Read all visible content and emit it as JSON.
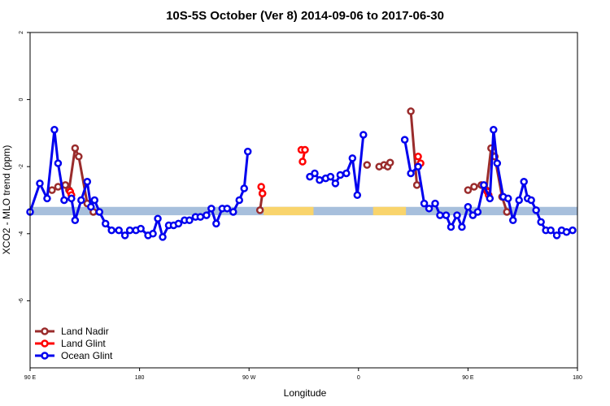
{
  "chart_data": {
    "type": "line",
    "title": "10S-5S October (Ver 8)   2014-09-06 to 2017-06-30",
    "xlabel": "Longitude",
    "ylabel": "XCO2 - MLO trend (ppm)",
    "xlim": [
      90,
      540
    ],
    "ylim": [
      -8,
      2
    ],
    "x_ticks": [
      {
        "value": 90,
        "label": "90 E"
      },
      {
        "value": 180,
        "label": "180"
      },
      {
        "value": 270,
        "label": "90 W"
      },
      {
        "value": 360,
        "label": "0"
      },
      {
        "value": 450,
        "label": "90 E"
      },
      {
        "value": 540,
        "label": "180"
      }
    ],
    "y_ticks": [
      {
        "value": 2,
        "label": "2"
      },
      {
        "value": 0,
        "label": "0"
      },
      {
        "value": -2,
        "label": "-2"
      },
      {
        "value": -4,
        "label": "-4"
      },
      {
        "value": -6,
        "label": "-6"
      }
    ],
    "grid": false,
    "legend_position": "bottom-left",
    "band": {
      "y_min": -3.45,
      "y_max": -3.2,
      "color": "#a7bfdc",
      "highlight_color": "#f9d46c",
      "highlights": [
        [
          282,
          323
        ],
        [
          372,
          399
        ]
      ]
    },
    "series": [
      {
        "name": "Land Nadir",
        "color": "#9a2c2c",
        "segments": [
          [
            [
              108,
              -2.7
            ],
            [
              113,
              -2.6
            ],
            [
              119,
              -2.55
            ],
            [
              122,
              -2.7
            ],
            [
              127,
              -1.45
            ],
            [
              130,
              -1.7
            ],
            [
              137,
              -3.1
            ],
            [
              142,
              -3.35
            ]
          ],
          [
            [
              279,
              -3.3
            ],
            [
              281,
              -2.8
            ]
          ],
          [
            [
              377,
              -2.0
            ]
          ],
          [
            [
              381,
              -1.95
            ],
            [
              384,
              -2.0
            ],
            [
              386,
              -1.88
            ]
          ],
          [
            [
              367,
              -1.95
            ]
          ],
          [
            [
              403,
              -0.35
            ],
            [
              408,
              -2.55
            ]
          ],
          [
            [
              450,
              -2.7
            ],
            [
              455,
              -2.6
            ],
            [
              461,
              -2.55
            ],
            [
              465,
              -2.7
            ],
            [
              469,
              -1.45
            ],
            [
              472,
              -1.7
            ],
            [
              478,
              -2.9
            ],
            [
              482,
              -3.35
            ]
          ]
        ]
      },
      {
        "name": "Land Glint",
        "color": "#ff0000",
        "segments": [
          [
            [
              123,
              -2.75
            ],
            [
              124,
              -2.85
            ]
          ],
          [
            [
              280,
              -2.6
            ],
            [
              281,
              -2.8
            ]
          ],
          [
            [
              313,
              -1.5
            ],
            [
              316,
              -1.5
            ],
            [
              314,
              -1.85
            ]
          ],
          [
            [
              409,
              -1.7
            ],
            [
              411,
              -1.9
            ]
          ],
          [
            [
              466,
              -2.75
            ],
            [
              467,
              -2.85
            ]
          ]
        ]
      },
      {
        "name": "Ocean Glint",
        "color": "#0000ee",
        "segments": [
          [
            [
              90,
              -3.35
            ],
            [
              98,
              -2.5
            ],
            [
              104,
              -2.95
            ],
            [
              110,
              -0.9
            ],
            [
              113,
              -1.9
            ],
            [
              118,
              -3.0
            ],
            [
              124,
              -2.95
            ],
            [
              127,
              -3.6
            ],
            [
              132,
              -3.0
            ],
            [
              137,
              -2.45
            ],
            [
              140,
              -3.2
            ],
            [
              143,
              -3.0
            ],
            [
              147,
              -3.35
            ],
            [
              152,
              -3.7
            ],
            [
              157,
              -3.9
            ],
            [
              163,
              -3.9
            ],
            [
              168,
              -4.05
            ],
            [
              172,
              -3.9
            ],
            [
              177,
              -3.9
            ],
            [
              181,
              -3.85
            ],
            [
              187,
              -4.05
            ],
            [
              191,
              -4.0
            ],
            [
              195,
              -3.55
            ],
            [
              199,
              -4.1
            ],
            [
              204,
              -3.75
            ],
            [
              208,
              -3.75
            ],
            [
              212,
              -3.7
            ],
            [
              217,
              -3.6
            ],
            [
              221,
              -3.6
            ],
            [
              226,
              -3.5
            ],
            [
              230,
              -3.5
            ],
            [
              235,
              -3.45
            ],
            [
              239,
              -3.25
            ],
            [
              243,
              -3.7
            ],
            [
              248,
              -3.25
            ],
            [
              252,
              -3.25
            ],
            [
              257,
              -3.35
            ],
            [
              262,
              -3.0
            ],
            [
              266,
              -2.65
            ],
            [
              269,
              -1.55
            ]
          ],
          [
            [
              320,
              -2.3
            ],
            [
              324,
              -2.2
            ],
            [
              328,
              -2.4
            ],
            [
              333,
              -2.35
            ],
            [
              337,
              -2.3
            ],
            [
              341,
              -2.5
            ],
            [
              345,
              -2.25
            ],
            [
              350,
              -2.2
            ],
            [
              355,
              -1.75
            ],
            [
              359,
              -2.85
            ],
            [
              364,
              -1.05
            ]
          ],
          [
            [
              398,
              -1.2
            ],
            [
              403,
              -2.2
            ],
            [
              409,
              -2.0
            ],
            [
              414,
              -3.1
            ],
            [
              418,
              -3.25
            ],
            [
              423,
              -3.1
            ],
            [
              427,
              -3.45
            ],
            [
              432,
              -3.45
            ],
            [
              436,
              -3.8
            ],
            [
              441,
              -3.45
            ],
            [
              445,
              -3.8
            ],
            [
              450,
              -3.2
            ],
            [
              454,
              -3.45
            ],
            [
              458,
              -3.35
            ],
            [
              463,
              -2.55
            ],
            [
              468,
              -2.95
            ],
            [
              471,
              -0.9
            ],
            [
              474,
              -1.9
            ],
            [
              479,
              -2.9
            ],
            [
              483,
              -2.95
            ],
            [
              487,
              -3.6
            ],
            [
              492,
              -3.0
            ],
            [
              496,
              -2.45
            ],
            [
              499,
              -2.95
            ],
            [
              502,
              -3.0
            ],
            [
              506,
              -3.3
            ],
            [
              510,
              -3.65
            ],
            [
              514,
              -3.9
            ],
            [
              518,
              -3.9
            ],
            [
              523,
              -4.05
            ],
            [
              527,
              -3.9
            ],
            [
              531,
              -3.95
            ],
            [
              536,
              -3.9
            ]
          ]
        ]
      }
    ]
  }
}
